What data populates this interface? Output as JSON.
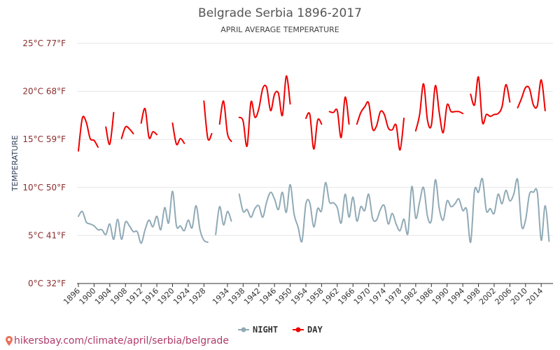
{
  "chart_data": {
    "type": "line",
    "title": "Belgrade Serbia 1896-2017",
    "subtitle": "APRIL AVERAGE TEMPERATURE",
    "ylabel": "TEMPERATURE",
    "xlabel": "",
    "x_range": [
      1896,
      2017
    ],
    "ylim": [
      0,
      25
    ],
    "y_ticks": [
      {
        "value": 25,
        "label": "25°C 77°F"
      },
      {
        "value": 20,
        "label": "20°C 68°F"
      },
      {
        "value": 15,
        "label": "15°C 59°F"
      },
      {
        "value": 10,
        "label": "10°C 50°F"
      },
      {
        "value": 5,
        "label": "5°C 41°F"
      },
      {
        "value": 0,
        "label": "0°C 32°F"
      }
    ],
    "x_ticks": [
      "1896",
      "1900",
      "1904",
      "1908",
      "1912",
      "1916",
      "1920",
      "1924",
      "1928",
      "1934",
      "1938",
      "1942",
      "1946",
      "1950",
      "1954",
      "1958",
      "1962",
      "1966",
      "1970",
      "1974",
      "1978",
      "1982",
      "1986",
      "1990",
      "1994",
      "1998",
      "2002",
      "2006",
      "2010",
      "2014"
    ],
    "grid": true,
    "legend_position": "bottom",
    "series": [
      {
        "name": "NIGHT",
        "color": "#90aab6",
        "segments": [
          [
            [
              1896,
              7.0
            ],
            [
              1897,
              7.5
            ],
            [
              1898,
              6.4
            ],
            [
              1899,
              6.2
            ],
            [
              1900,
              6.0
            ],
            [
              1901,
              5.6
            ],
            [
              1902,
              5.6
            ],
            [
              1903,
              5.1
            ],
            [
              1904,
              6.2
            ],
            [
              1905,
              4.6
            ],
            [
              1906,
              6.7
            ],
            [
              1907,
              4.6
            ],
            [
              1908,
              6.4
            ],
            [
              1909,
              6.0
            ],
            [
              1910,
              5.4
            ],
            [
              1911,
              5.4
            ],
            [
              1912,
              4.2
            ],
            [
              1913,
              5.6
            ],
            [
              1914,
              6.6
            ],
            [
              1915,
              5.9
            ],
            [
              1916,
              7.0
            ],
            [
              1917,
              5.6
            ],
            [
              1918,
              7.9
            ],
            [
              1919,
              6.3
            ],
            [
              1920,
              9.6
            ],
            [
              1921,
              6.0
            ],
            [
              1922,
              6.0
            ],
            [
              1923,
              5.5
            ],
            [
              1924,
              6.6
            ],
            [
              1925,
              5.8
            ],
            [
              1926,
              8.1
            ],
            [
              1927,
              5.6
            ],
            [
              1928,
              4.5
            ],
            [
              1929,
              4.3
            ]
          ],
          [
            [
              1931,
              5.1
            ],
            [
              1932,
              8.0
            ],
            [
              1933,
              6.1
            ],
            [
              1934,
              7.5
            ],
            [
              1935,
              6.5
            ]
          ],
          [
            [
              1937,
              9.3
            ],
            [
              1938,
              7.5
            ],
            [
              1939,
              7.7
            ],
            [
              1940,
              6.9
            ],
            [
              1941,
              7.8
            ],
            [
              1942,
              8.1
            ],
            [
              1943,
              6.9
            ],
            [
              1944,
              8.5
            ],
            [
              1945,
              9.5
            ],
            [
              1946,
              8.8
            ],
            [
              1947,
              7.7
            ],
            [
              1948,
              9.5
            ],
            [
              1949,
              7.4
            ],
            [
              1950,
              10.3
            ],
            [
              1951,
              7.2
            ],
            [
              1952,
              5.9
            ],
            [
              1953,
              4.4
            ],
            [
              1954,
              8.3
            ],
            [
              1955,
              8.4
            ],
            [
              1956,
              5.9
            ],
            [
              1957,
              7.8
            ],
            [
              1958,
              7.6
            ],
            [
              1959,
              10.5
            ],
            [
              1960,
              8.5
            ],
            [
              1961,
              8.4
            ],
            [
              1962,
              7.9
            ],
            [
              1963,
              6.3
            ],
            [
              1964,
              9.3
            ],
            [
              1965,
              6.9
            ],
            [
              1966,
              9.0
            ],
            [
              1967,
              6.5
            ],
            [
              1968,
              8.0
            ],
            [
              1969,
              7.6
            ],
            [
              1970,
              9.3
            ],
            [
              1971,
              6.8
            ],
            [
              1972,
              6.6
            ],
            [
              1973,
              7.7
            ],
            [
              1974,
              8.1
            ],
            [
              1975,
              6.2
            ],
            [
              1976,
              7.3
            ],
            [
              1977,
              6.2
            ],
            [
              1978,
              5.5
            ],
            [
              1979,
              6.7
            ],
            [
              1980,
              5.2
            ],
            [
              1981,
              10.1
            ],
            [
              1982,
              6.8
            ],
            [
              1983,
              8.5
            ],
            [
              1984,
              10.0
            ],
            [
              1985,
              7.0
            ],
            [
              1986,
              6.6
            ],
            [
              1987,
              10.8
            ],
            [
              1988,
              7.8
            ],
            [
              1989,
              6.6
            ],
            [
              1990,
              8.6
            ],
            [
              1991,
              8.0
            ],
            [
              1992,
              8.3
            ],
            [
              1993,
              8.8
            ],
            [
              1994,
              7.6
            ],
            [
              1995,
              7.7
            ],
            [
              1996,
              4.3
            ],
            [
              1997,
              9.7
            ],
            [
              1998,
              9.5
            ],
            [
              1999,
              10.9
            ],
            [
              2000,
              7.6
            ],
            [
              2001,
              7.8
            ],
            [
              2002,
              7.3
            ],
            [
              2003,
              9.3
            ],
            [
              2004,
              8.3
            ],
            [
              2005,
              9.7
            ],
            [
              2006,
              8.6
            ],
            [
              2007,
              9.3
            ],
            [
              2008,
              10.8
            ],
            [
              2009,
              6.0
            ],
            [
              2010,
              6.6
            ],
            [
              2011,
              9.3
            ],
            [
              2012,
              9.5
            ],
            [
              2013,
              9.5
            ],
            [
              2014,
              4.5
            ],
            [
              2015,
              8.1
            ],
            [
              2016,
              4.4
            ]
          ]
        ]
      },
      {
        "name": "DAY",
        "color": "#ee0000",
        "segments": [
          [
            [
              1896,
              13.8
            ],
            [
              1897,
              17.2
            ],
            [
              1898,
              16.8
            ],
            [
              1899,
              15.1
            ],
            [
              1900,
              14.9
            ],
            [
              1901,
              14.2
            ]
          ],
          [
            [
              1903,
              16.3
            ],
            [
              1904,
              14.5
            ],
            [
              1905,
              17.8
            ]
          ],
          [
            [
              1907,
              15.1
            ],
            [
              1908,
              16.3
            ],
            [
              1909,
              16.1
            ],
            [
              1910,
              15.6
            ]
          ],
          [
            [
              1912,
              16.7
            ],
            [
              1913,
              18.2
            ],
            [
              1914,
              15.2
            ],
            [
              1915,
              15.8
            ],
            [
              1916,
              15.5
            ]
          ],
          [
            [
              1920,
              16.7
            ],
            [
              1921,
              14.5
            ],
            [
              1922,
              15.1
            ],
            [
              1923,
              14.6
            ]
          ],
          [
            [
              1928,
              19.0
            ],
            [
              1929,
              15.1
            ],
            [
              1930,
              15.6
            ]
          ],
          [
            [
              1932,
              16.6
            ],
            [
              1933,
              19.0
            ],
            [
              1934,
              15.6
            ],
            [
              1935,
              14.8
            ]
          ],
          [
            [
              1937,
              17.3
            ],
            [
              1938,
              16.9
            ],
            [
              1939,
              14.3
            ],
            [
              1940,
              18.9
            ],
            [
              1941,
              17.3
            ],
            [
              1942,
              18.2
            ],
            [
              1943,
              20.3
            ],
            [
              1944,
              20.4
            ],
            [
              1945,
              18.0
            ],
            [
              1946,
              19.7
            ],
            [
              1947,
              19.8
            ],
            [
              1948,
              17.5
            ],
            [
              1949,
              21.6
            ],
            [
              1950,
              18.7
            ]
          ],
          [
            [
              1954,
              17.2
            ],
            [
              1955,
              17.6
            ],
            [
              1956,
              14.0
            ],
            [
              1957,
              17.0
            ],
            [
              1958,
              16.6
            ]
          ],
          [
            [
              1960,
              17.9
            ],
            [
              1961,
              17.8
            ],
            [
              1962,
              18.0
            ],
            [
              1963,
              15.2
            ],
            [
              1964,
              19.4
            ],
            [
              1965,
              16.6
            ]
          ],
          [
            [
              1967,
              16.6
            ],
            [
              1968,
              17.8
            ],
            [
              1969,
              18.4
            ],
            [
              1970,
              18.8
            ],
            [
              1971,
              16.1
            ],
            [
              1972,
              16.4
            ],
            [
              1973,
              17.9
            ],
            [
              1974,
              17.6
            ],
            [
              1975,
              16.2
            ],
            [
              1976,
              16.0
            ],
            [
              1977,
              16.5
            ],
            [
              1978,
              13.9
            ],
            [
              1979,
              17.2
            ]
          ],
          [
            [
              1982,
              15.9
            ],
            [
              1983,
              17.6
            ],
            [
              1984,
              20.8
            ],
            [
              1985,
              17.0
            ],
            [
              1986,
              16.5
            ],
            [
              1987,
              20.6
            ],
            [
              1988,
              17.8
            ],
            [
              1989,
              15.7
            ],
            [
              1990,
              18.6
            ],
            [
              1991,
              17.9
            ],
            [
              1992,
              17.9
            ],
            [
              1993,
              17.9
            ],
            [
              1994,
              17.7
            ]
          ],
          [
            [
              1996,
              19.7
            ],
            [
              1997,
              18.6
            ],
            [
              1998,
              21.5
            ],
            [
              1999,
              16.8
            ],
            [
              2000,
              17.6
            ],
            [
              2001,
              17.4
            ],
            [
              2002,
              17.6
            ],
            [
              2003,
              17.7
            ],
            [
              2004,
              18.4
            ],
            [
              2005,
              20.7
            ],
            [
              2006,
              18.9
            ]
          ],
          [
            [
              2008,
              18.3
            ],
            [
              2009,
              19.3
            ],
            [
              2010,
              20.4
            ],
            [
              2011,
              20.3
            ],
            [
              2012,
              18.6
            ],
            [
              2013,
              18.5
            ],
            [
              2014,
              21.2
            ],
            [
              2015,
              18.0
            ]
          ]
        ]
      }
    ]
  },
  "source": {
    "text": "hikersbay.com/climate/april/serbia/belgrade"
  }
}
